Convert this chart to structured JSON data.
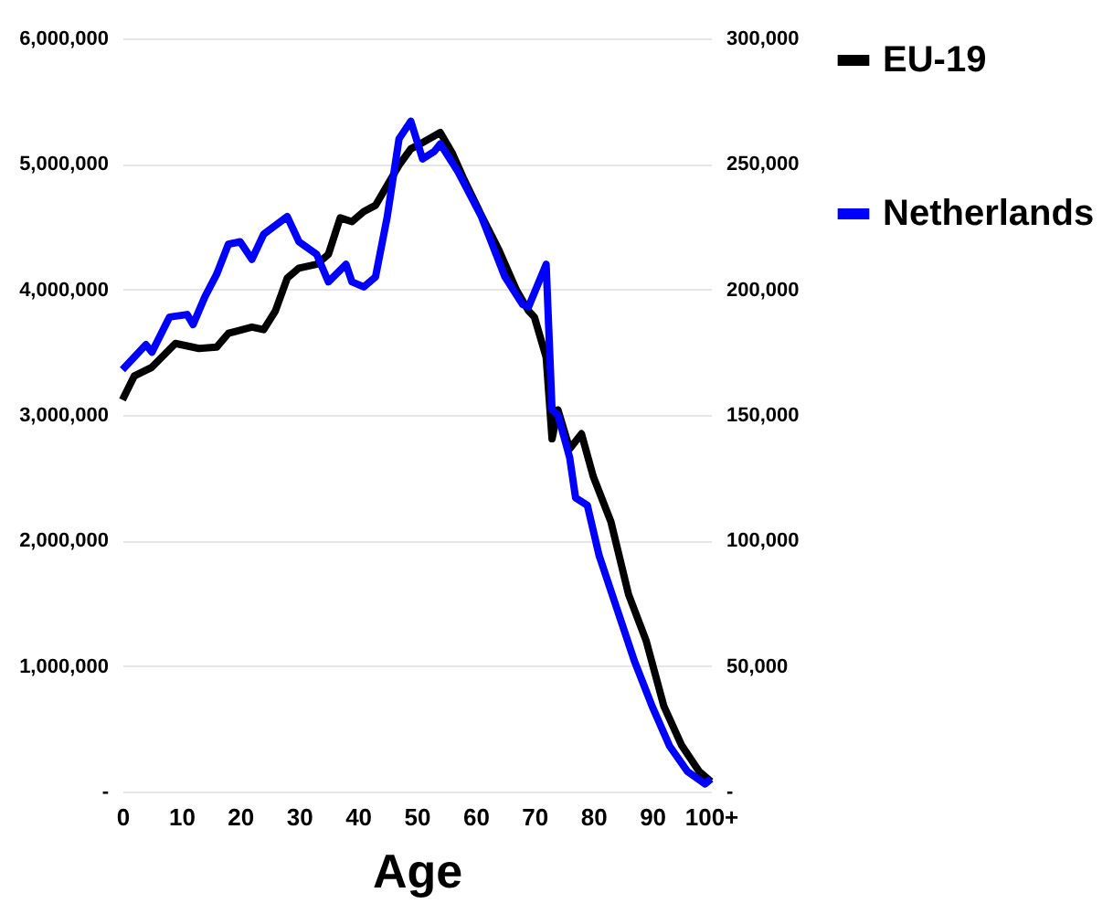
{
  "chart_data": {
    "type": "line",
    "xlabel": "Age",
    "xlim": [
      0,
      100
    ],
    "xticks": [
      0,
      10,
      20,
      30,
      40,
      50,
      60,
      70,
      80,
      90,
      {
        "value": 100,
        "label": "100+"
      }
    ],
    "ylim": [
      0,
      6000000
    ],
    "yticks": [
      {
        "value": 0,
        "label": "-"
      },
      {
        "value": 1000000,
        "label": "1,000,000"
      },
      {
        "value": 2000000,
        "label": "2,000,000"
      },
      {
        "value": 3000000,
        "label": "3,000,000"
      },
      {
        "value": 4000000,
        "label": "4,000,000"
      },
      {
        "value": 5000000,
        "label": "5,000,000"
      },
      {
        "value": 6000000,
        "label": "6,000,000"
      }
    ],
    "y2lim": [
      0,
      300000
    ],
    "y2ticks": [
      {
        "value": 0,
        "label": "-"
      },
      {
        "value": 50000,
        "label": "50,000"
      },
      {
        "value": 100000,
        "label": "100,000"
      },
      {
        "value": 150000,
        "label": "150,000"
      },
      {
        "value": 200000,
        "label": "200,000"
      },
      {
        "value": 250000,
        "label": "250,000"
      },
      {
        "value": 300000,
        "label": "300,000"
      }
    ],
    "grid": "y",
    "legend": "right",
    "marker": "none",
    "line_style": "solid",
    "series": [
      {
        "name": "EU-19",
        "color": "#000000",
        "x": [
          0,
          2,
          5,
          9,
          13,
          16,
          18,
          22,
          24,
          26,
          28,
          30,
          33,
          35,
          37,
          39,
          41,
          43,
          45,
          47,
          49,
          51,
          54,
          56,
          58,
          61,
          64,
          67,
          69,
          70,
          72,
          73,
          74,
          76,
          78,
          80,
          83,
          86,
          89,
          92,
          95,
          98,
          100
        ],
        "values": [
          3120000,
          3310000,
          3380000,
          3570000,
          3530000,
          3540000,
          3650000,
          3700000,
          3680000,
          3830000,
          4090000,
          4170000,
          4200000,
          4280000,
          4570000,
          4540000,
          4620000,
          4670000,
          4830000,
          4990000,
          5120000,
          5170000,
          5250000,
          5090000,
          4880000,
          4590000,
          4310000,
          3990000,
          3830000,
          3780000,
          3460000,
          2810000,
          3040000,
          2730000,
          2850000,
          2510000,
          2150000,
          1570000,
          1200000,
          680000,
          370000,
          160000,
          80000
        ]
      },
      {
        "name": "Netherlands",
        "color": "#0000ff",
        "axis": "y2",
        "x": [
          0,
          2,
          4,
          5,
          8,
          11,
          12,
          14,
          16,
          18,
          20,
          22,
          24,
          28,
          30,
          33,
          35,
          38,
          39,
          41,
          43,
          45,
          47,
          49,
          51,
          53,
          54,
          57,
          61,
          65,
          68,
          69,
          72,
          73,
          74,
          76,
          77,
          79,
          81,
          84,
          87,
          90,
          93,
          96,
          99,
          100
        ],
        "values": [
          168000,
          173000,
          178000,
          175000,
          189000,
          190000,
          186000,
          197000,
          206000,
          218000,
          219000,
          212000,
          222000,
          229000,
          219000,
          214000,
          203000,
          210000,
          203000,
          201000,
          205000,
          229000,
          260000,
          267000,
          252000,
          255000,
          258000,
          247000,
          229000,
          205000,
          194000,
          193000,
          210000,
          152000,
          150000,
          133000,
          117000,
          114000,
          94000,
          73000,
          52000,
          34000,
          18000,
          8000,
          3000,
          5000
        ]
      }
    ]
  }
}
